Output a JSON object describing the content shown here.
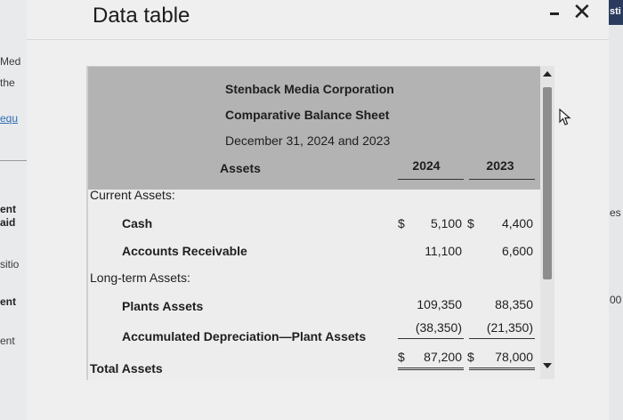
{
  "background_left": {
    "snippets": [
      "Med",
      "the",
      "equ",
      "ent",
      "aid",
      "sitio",
      "ent",
      "ent"
    ]
  },
  "background_right": {
    "topbar_text": "sti",
    "snippets": [
      "es",
      "00"
    ]
  },
  "dialog": {
    "title": "Data table"
  },
  "table": {
    "company": "Stenback Media Corporation",
    "statement": "Comparative Balance Sheet",
    "date": "December 31, 2024 and 2023",
    "section_header": "Assets",
    "columns": [
      "2024",
      "2023"
    ],
    "groups": {
      "current": "Current Assets:",
      "long_term": "Long-term Assets:"
    },
    "rows": [
      {
        "label": "Cash",
        "v2024": "5,100",
        "v2023": "4,400",
        "dollar2024": "$",
        "dollar2023": "$"
      },
      {
        "label": "Accounts Receivable",
        "v2024": "11,100",
        "v2023": "6,600"
      },
      {
        "label": "Plants Assets",
        "v2024": "109,350",
        "v2023": "88,350"
      },
      {
        "label": "Accumulated Depreciation—Plant Assets",
        "v2024": "(38,350)",
        "v2023": "(21,350)"
      }
    ],
    "total": {
      "label": "Total Assets",
      "v2024": "87,200",
      "v2023": "78,000",
      "dollar2024": "$",
      "dollar2023": "$"
    }
  },
  "colors": {
    "header_shade": "#b3b3b3",
    "panel": "#ededed",
    "frame": "#1d2c4d"
  }
}
